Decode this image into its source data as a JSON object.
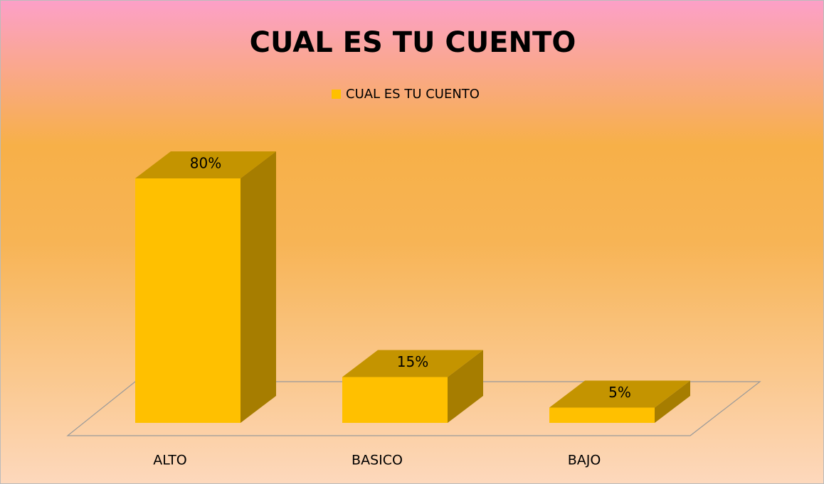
{
  "chart_data": {
    "type": "bar3d",
    "title": "CUAL ES TU CUENTO",
    "categories": [
      "ALTO",
      "BASICO",
      "BAJO"
    ],
    "series": [
      {
        "name": "CUAL ES TU CUENTO",
        "color": "#ffc000",
        "values": [
          80,
          15,
          5
        ],
        "value_labels": [
          "80%",
          "15%",
          "5%"
        ]
      }
    ],
    "legend": "top"
  }
}
